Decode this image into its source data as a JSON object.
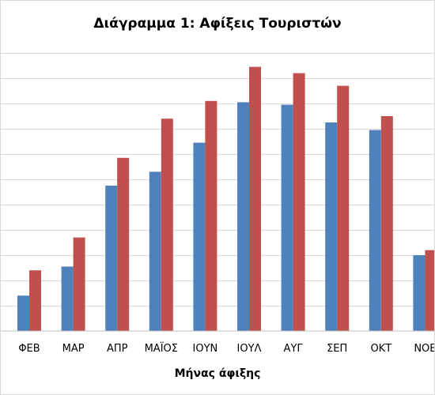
{
  "chart_data": {
    "type": "bar",
    "title": "Διάγραμμα 1: Αφίξεις Τουριστών",
    "xlabel": "Μήνας άφιξης",
    "ylabel": "",
    "categories": [
      "ΦΕΒ",
      "ΜΑΡ",
      "ΑΠΡ",
      "ΜΑΪΟΣ",
      "ΙΟΥΝ",
      "ΙΟΥΛ",
      "ΑΥΓ",
      "ΣΕΠ",
      "ΟΚΤ",
      "ΝΟΕ"
    ],
    "series": [
      {
        "color": "#4f81bd",
        "values": [
          1.4,
          2.55,
          5.75,
          6.3,
          7.45,
          9.05,
          8.95,
          8.25,
          7.95,
          3.0
        ]
      },
      {
        "color": "#c0504d",
        "values": [
          2.4,
          3.7,
          6.85,
          8.4,
          9.1,
          10.45,
          10.2,
          9.7,
          8.5,
          3.2
        ]
      }
    ],
    "ylim": [
      0,
      11
    ],
    "y_gridlines": 11,
    "grid": true,
    "y_tick_labels_visible": false,
    "legend": "none"
  }
}
